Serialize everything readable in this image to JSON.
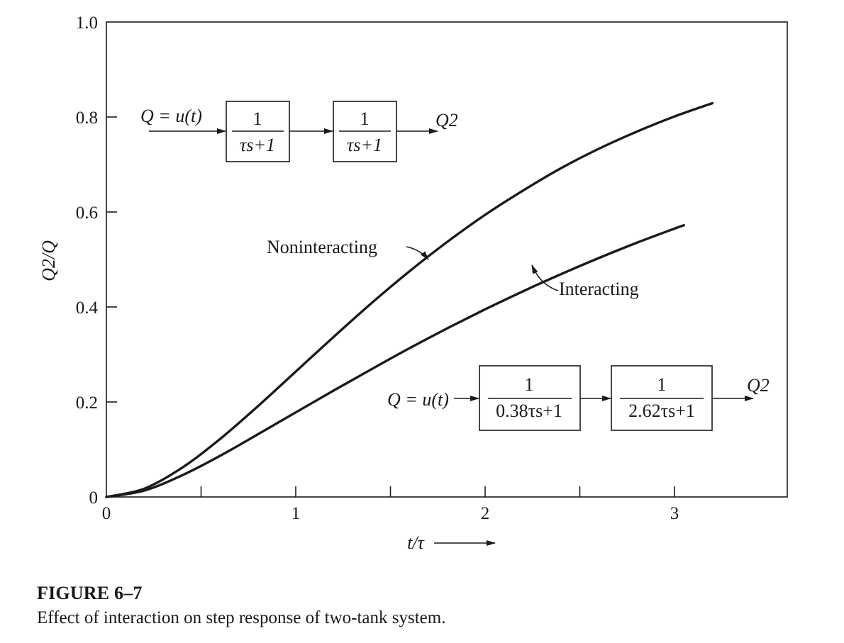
{
  "chart_data": {
    "type": "line",
    "xlabel": "t/τ",
    "ylabel": "Q2/Q",
    "xlim": [
      0,
      3.6
    ],
    "ylim": [
      0,
      1.0
    ],
    "x_ticks": [
      0,
      1,
      2,
      3
    ],
    "x_minor_ticks": [
      0.5,
      1.5,
      2.5
    ],
    "y_ticks": [
      {
        "value": 0,
        "label": "0"
      },
      {
        "value": 0.2,
        "label": "0.2"
      },
      {
        "value": 0.4,
        "label": "0.4"
      },
      {
        "value": 0.6,
        "label": "0.6"
      },
      {
        "value": 0.8,
        "label": "0.8"
      },
      {
        "value": 1.0,
        "label": "1.0"
      }
    ],
    "grid": false,
    "series": [
      {
        "name": "Noninteracting",
        "x": [
          0,
          0.2,
          0.4,
          0.6,
          0.8,
          1.0,
          1.2,
          1.4,
          1.6,
          1.8,
          2.0,
          2.2,
          2.4,
          2.6,
          2.8,
          3.0,
          3.2
        ],
        "values": [
          0,
          0.0175,
          0.0616,
          0.122,
          0.191,
          0.264,
          0.337,
          0.408,
          0.475,
          0.537,
          0.594,
          0.645,
          0.692,
          0.733,
          0.769,
          0.801,
          0.829
        ]
      },
      {
        "name": "Interacting",
        "x": [
          0,
          0.2,
          0.4,
          0.6,
          0.8,
          1.0,
          1.2,
          1.4,
          1.6,
          1.8,
          2.0,
          2.2,
          2.4,
          2.6,
          2.8,
          3.0,
          3.05
        ],
        "values": [
          0,
          0.0134,
          0.0456,
          0.0865,
          0.132,
          0.178,
          0.224,
          0.269,
          0.313,
          0.355,
          0.395,
          0.433,
          0.469,
          0.503,
          0.535,
          0.565,
          0.572
        ]
      }
    ],
    "annotations": {
      "noninteracting_label": "Noninteracting",
      "interacting_label": "Interacting"
    }
  },
  "diagrams": {
    "top": {
      "input": "Q = u(t)",
      "blocks": [
        {
          "num": "1",
          "den": "τs+1"
        },
        {
          "num": "1",
          "den": "τs+1"
        }
      ],
      "output": "Q2"
    },
    "bottom": {
      "input": "Q = u(t)",
      "blocks": [
        {
          "num": "1",
          "den": "0.38τs+1"
        },
        {
          "num": "1",
          "den": "2.62τs+1"
        }
      ],
      "output": "Q2"
    }
  },
  "caption": {
    "title": "FIGURE 6–7",
    "text": "Effect of interaction on step response of two-tank system."
  }
}
